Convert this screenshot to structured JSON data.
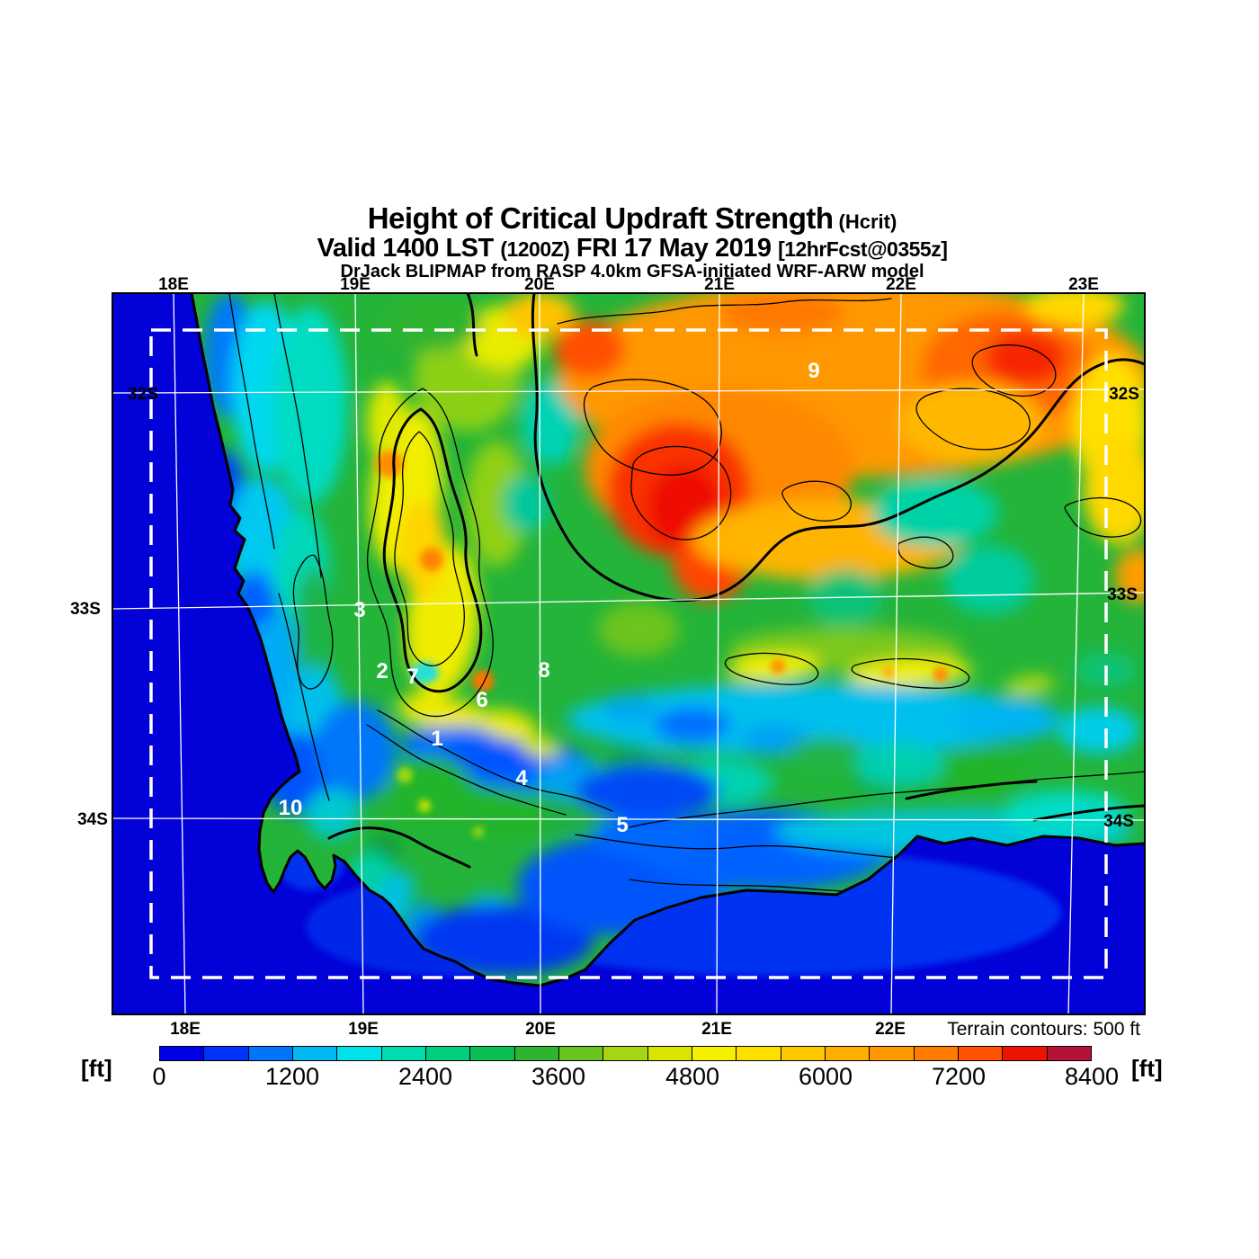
{
  "header": {
    "title": "Height of Critical Updraft Strength",
    "title_suffix": "(Hcrit)",
    "valid_main": "Valid 1400 LST",
    "valid_zulu": "(1200Z)",
    "valid_date": "FRI 17 May 2019",
    "valid_fcst": "[12hrFcst@0355z]",
    "model_line": "DrJack BLIPMAP from RASP 4.0km GFSA-initiated WRF-ARW model"
  },
  "axes": {
    "top_lon": [
      "18E",
      "19E",
      "20E",
      "21E",
      "22E",
      "23E"
    ],
    "bottom_lon": [
      "18E",
      "19E",
      "20E",
      "21E",
      "22E"
    ],
    "lat_left": [
      "32S",
      "33S",
      "34S"
    ],
    "lat_right": [
      "32S",
      "33S",
      "34S"
    ]
  },
  "map": {
    "markers": [
      {
        "label": "1"
      },
      {
        "label": "2"
      },
      {
        "label": "3"
      },
      {
        "label": "4"
      },
      {
        "label": "5"
      },
      {
        "label": "6"
      },
      {
        "label": "7"
      },
      {
        "label": "8"
      },
      {
        "label": "9"
      },
      {
        "label": "10"
      }
    ],
    "ocean_color": "#0101d8",
    "gridline_color": "#ffffff",
    "contour_color": "#000000",
    "domain_boundary_style": "dashed-white"
  },
  "colorbar": {
    "unit_left": "[ft]",
    "unit_right": "[ft]",
    "ticks": [
      "0",
      "1200",
      "2400",
      "3600",
      "4800",
      "6000",
      "7200",
      "8400"
    ],
    "interval_ft": 400,
    "colors": [
      "#0000e8",
      "#0033f8",
      "#0075fa",
      "#00b8f2",
      "#00e2e8",
      "#00dcae",
      "#00d07e",
      "#0abf52",
      "#2eb42e",
      "#69c41d",
      "#a6d514",
      "#d9e400",
      "#f6f000",
      "#ffdf00",
      "#ffc700",
      "#ffaf00",
      "#ff9700",
      "#ff7c00",
      "#ff5200",
      "#ed1300",
      "#b41237"
    ]
  },
  "terrain_note": "Terrain contours: 500 ft"
}
